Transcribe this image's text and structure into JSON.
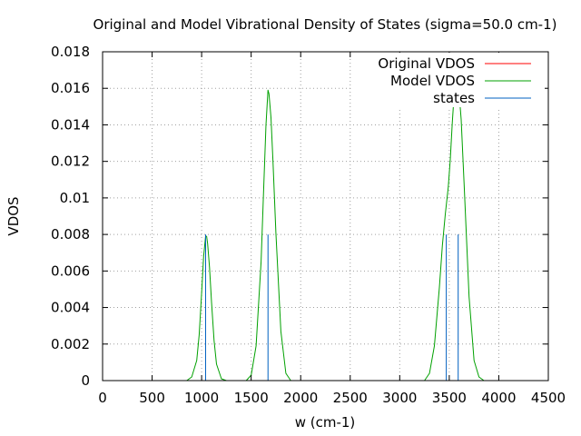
{
  "chart_data": {
    "type": "line",
    "title": "Original and Model Vibrational Density of States (sigma=50.0 cm-1)",
    "xlabel": "w (cm-1)",
    "ylabel": "VDOS",
    "xlim": [
      0,
      4500
    ],
    "ylim": [
      0,
      0.018
    ],
    "xticks": [
      0,
      500,
      1000,
      1500,
      2000,
      2500,
      3000,
      3500,
      4000,
      4500
    ],
    "yticks": [
      0,
      0.002,
      0.004,
      0.006,
      0.008,
      0.01,
      0.012,
      0.014,
      0.016,
      0.018
    ],
    "xtick_labels": [
      "0",
      "500",
      "1000",
      "1500",
      "2000",
      "2500",
      "3000",
      "3500",
      "4000",
      "4500"
    ],
    "ytick_labels": [
      "0",
      "0.002",
      "0.004",
      "0.006",
      "0.008",
      "0.01",
      "0.012",
      "0.014",
      "0.016",
      "0.018"
    ],
    "grid": true,
    "legend_position": "top-right",
    "series": [
      {
        "name": "Original VDOS",
        "color": "#ff0000",
        "style": "line",
        "x": [],
        "y": []
      },
      {
        "name": "Model VDOS",
        "color": "#00a000",
        "style": "line",
        "x": [
          850,
          900,
          950,
          975,
          1000,
          1020,
          1040,
          1050,
          1060,
          1080,
          1100,
          1125,
          1150,
          1200,
          1250,
          1450,
          1500,
          1550,
          1600,
          1625,
          1650,
          1670,
          1680,
          1700,
          1720,
          1750,
          1800,
          1850,
          1900,
          3250,
          3300,
          3350,
          3400,
          3430,
          3460,
          3490,
          3510,
          3530,
          3550,
          3575,
          3590,
          3600,
          3620,
          3650,
          3700,
          3750,
          3800,
          3850
        ],
        "y": [
          0,
          0.0002,
          0.0011,
          0.0025,
          0.0048,
          0.0068,
          0.0079,
          0.0079,
          0.0075,
          0.0062,
          0.0043,
          0.0022,
          0.0009,
          0.0001,
          0,
          0,
          0.0003,
          0.0019,
          0.0065,
          0.0103,
          0.014,
          0.0159,
          0.0157,
          0.0144,
          0.012,
          0.0081,
          0.0027,
          0.0004,
          0,
          0,
          0.0004,
          0.0019,
          0.0051,
          0.0074,
          0.0091,
          0.0106,
          0.0121,
          0.0141,
          0.0157,
          0.0163,
          0.016,
          0.0157,
          0.0143,
          0.0107,
          0.0046,
          0.0011,
          0.0002,
          0
        ]
      },
      {
        "name": "states",
        "color": "#0060c0",
        "style": "impulse",
        "x": [
          1040,
          1670,
          3470,
          3590
        ],
        "y": [
          0.008,
          0.008,
          0.008,
          0.008
        ]
      }
    ]
  }
}
